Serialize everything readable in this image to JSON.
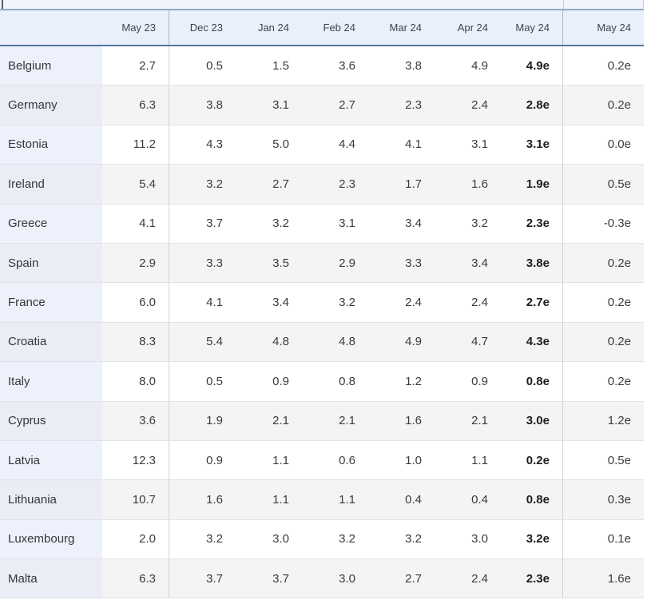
{
  "chart_data": {
    "type": "table",
    "columns": [
      "May 23",
      "Dec 23",
      "Jan 24",
      "Feb 24",
      "Mar 24",
      "Apr 24",
      "May 24",
      "May 24"
    ],
    "bold_estimate_column_index": 6,
    "rows": [
      {
        "label": "Belgium",
        "values": [
          "2.7",
          "0.5",
          "1.5",
          "3.6",
          "3.8",
          "4.9",
          "4.9e",
          "0.2e"
        ]
      },
      {
        "label": "Germany",
        "values": [
          "6.3",
          "3.8",
          "3.1",
          "2.7",
          "2.3",
          "2.4",
          "2.8e",
          "0.2e"
        ]
      },
      {
        "label": "Estonia",
        "values": [
          "11.2",
          "4.3",
          "5.0",
          "4.4",
          "4.1",
          "3.1",
          "3.1e",
          "0.0e"
        ]
      },
      {
        "label": "Ireland",
        "values": [
          "5.4",
          "3.2",
          "2.7",
          "2.3",
          "1.7",
          "1.6",
          "1.9e",
          "0.5e"
        ]
      },
      {
        "label": "Greece",
        "values": [
          "4.1",
          "3.7",
          "3.2",
          "3.1",
          "3.4",
          "3.2",
          "2.3e",
          "-0.3e"
        ]
      },
      {
        "label": "Spain",
        "values": [
          "2.9",
          "3.3",
          "3.5",
          "2.9",
          "3.3",
          "3.4",
          "3.8e",
          "0.2e"
        ]
      },
      {
        "label": "France",
        "values": [
          "6.0",
          "4.1",
          "3.4",
          "3.2",
          "2.4",
          "2.4",
          "2.7e",
          "0.2e"
        ]
      },
      {
        "label": "Croatia",
        "values": [
          "8.3",
          "5.4",
          "4.8",
          "4.8",
          "4.9",
          "4.7",
          "4.3e",
          "0.2e"
        ]
      },
      {
        "label": "Italy",
        "values": [
          "8.0",
          "0.5",
          "0.9",
          "0.8",
          "1.2",
          "0.9",
          "0.8e",
          "0.2e"
        ]
      },
      {
        "label": "Cyprus",
        "values": [
          "3.6",
          "1.9",
          "2.1",
          "2.1",
          "1.6",
          "2.1",
          "3.0e",
          "1.2e"
        ]
      },
      {
        "label": "Latvia",
        "values": [
          "12.3",
          "0.9",
          "1.1",
          "0.6",
          "1.0",
          "1.1",
          "0.2e",
          "0.5e"
        ]
      },
      {
        "label": "Lithuania",
        "values": [
          "10.7",
          "1.6",
          "1.1",
          "1.1",
          "0.4",
          "0.4",
          "0.8e",
          "0.3e"
        ]
      },
      {
        "label": "Luxembourg",
        "values": [
          "2.0",
          "3.2",
          "3.0",
          "3.2",
          "3.2",
          "3.0",
          "3.2e",
          "0.1e"
        ]
      },
      {
        "label": "Malta",
        "values": [
          "6.3",
          "3.7",
          "3.7",
          "3.0",
          "2.7",
          "2.4",
          "2.3e",
          "1.6e"
        ]
      }
    ]
  },
  "colors": {
    "header_background": "#eaf0fb",
    "header_border_top": "#8fa9c8",
    "header_border_bottom": "#56749e",
    "row_background": "#ffffff",
    "alt_row_background": "#f4f4f5",
    "country_column_background": "#edf1fb",
    "country_column_alt_background": "#eaedf6",
    "row_divider": "#e1e2e5",
    "column_divider": "#cfd3da",
    "text": "#3a3b3e"
  }
}
